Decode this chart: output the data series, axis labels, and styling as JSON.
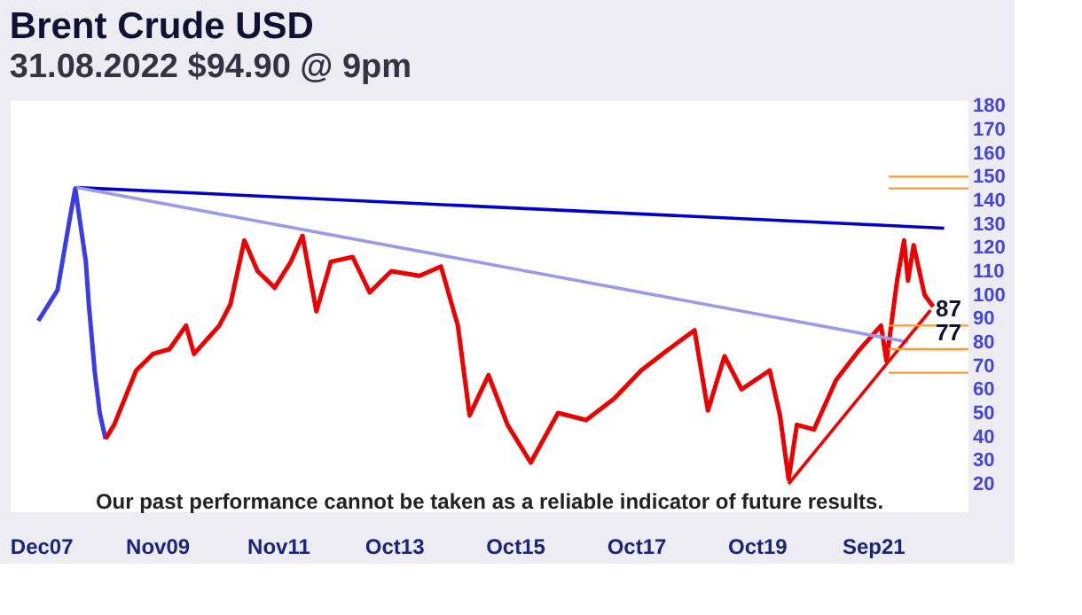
{
  "chart_data": {
    "type": "line",
    "title": "Brent Crude USD",
    "subtitle": "31.08.2022  $94.90 @ 9pm",
    "xlim": [
      "2007-06-01",
      "2023-04-01"
    ],
    "ylim": [
      8,
      182
    ],
    "xticks": [
      {
        "value": "2007-12-01",
        "label": "Dec07"
      },
      {
        "value": "2009-11-01",
        "label": "Nov09"
      },
      {
        "value": "2011-11-01",
        "label": "Nov11"
      },
      {
        "value": "2013-10-01",
        "label": "Oct13"
      },
      {
        "value": "2015-10-01",
        "label": "Oct15"
      },
      {
        "value": "2017-10-01",
        "label": "Oct17"
      },
      {
        "value": "2019-10-01",
        "label": "Oct19"
      },
      {
        "value": "2021-09-01",
        "label": "Sep21"
      }
    ],
    "yticks": [
      20,
      30,
      40,
      50,
      60,
      70,
      80,
      90,
      100,
      110,
      120,
      130,
      140,
      150,
      160,
      170,
      180
    ],
    "grid": false,
    "series": [
      {
        "color": "#3c3ce6",
        "x": [
          "2007-11-15",
          "2008-03-10",
          "2008-05-20",
          "2008-06-25",
          "2008-08-28",
          "2008-09-15",
          "2008-10-20",
          "2008-11-20",
          "2008-12-25"
        ],
        "values": [
          89,
          102,
          131,
          145,
          114,
          96,
          68,
          50,
          39
        ]
      },
      {
        "color": "#ee0000",
        "x": [
          "2008-12-25",
          "2009-02-15",
          "2009-06-28",
          "2009-10-08",
          "2010-01-15",
          "2010-04-25",
          "2010-06-12",
          "2010-11-12",
          "2011-01-18",
          "2011-04-12",
          "2011-07-01",
          "2011-10-12",
          "2012-01-18",
          "2012-03-28",
          "2012-06-20",
          "2012-09-15",
          "2013-01-25",
          "2013-05-08",
          "2013-09-15",
          "2014-03-05",
          "2014-07-12",
          "2014-10-22",
          "2015-01-01",
          "2015-04-25",
          "2015-08-18",
          "2016-01-05",
          "2016-06-18",
          "2016-12-05",
          "2017-05-22",
          "2017-11-02",
          "2018-04-18",
          "2018-09-20",
          "2018-12-10",
          "2019-03-20",
          "2019-07-01",
          "2019-12-18",
          "2020-02-18",
          "2020-04-10",
          "2020-05-30",
          "2020-09-10",
          "2021-01-22",
          "2021-06-03",
          "2021-10-20",
          "2021-11-22",
          "2022-01-25",
          "2022-03-08",
          "2022-04-01",
          "2022-05-05",
          "2022-07-10",
          "2022-08-31"
        ],
        "values": [
          39,
          45,
          68,
          75,
          77,
          87,
          75,
          87,
          96,
          123,
          110,
          103,
          114,
          125,
          93,
          114,
          116,
          101,
          110,
          108,
          112,
          87,
          49,
          66,
          45,
          29,
          50,
          47,
          56,
          68,
          77,
          85,
          51,
          74,
          60,
          68,
          49,
          22,
          45,
          43,
          64,
          76,
          87,
          72,
          106,
          123,
          106,
          121,
          100,
          95
        ]
      },
      {
        "color": "#0000cc",
        "x": [
          "2008-07-03",
          "2022-11-05"
        ],
        "values": [
          145.4,
          128.2
        ]
      },
      {
        "color": "#9999ee",
        "x": [
          "2008-07-03",
          "2022-04-01"
        ],
        "values": [
          145.4,
          80
        ]
      },
      {
        "color": "#ee0000",
        "x": [
          "2020-04-10",
          "2022-08-15"
        ],
        "values": [
          20,
          93.5
        ]
      }
    ],
    "ref_lines": [
      {
        "axis": "y",
        "value": 150,
        "color": "#ff9933"
      },
      {
        "axis": "y",
        "value": 145,
        "color": "#ff9933"
      },
      {
        "axis": "y",
        "value": 87,
        "label": "87",
        "color": "#ff9933"
      },
      {
        "axis": "y",
        "value": 77,
        "label": "77",
        "color": "#ff9933"
      },
      {
        "axis": "y",
        "value": 67,
        "color": "#ff9933"
      }
    ],
    "annotations": [
      "Our past performance cannot be taken as a reliable indicator of future results."
    ]
  }
}
